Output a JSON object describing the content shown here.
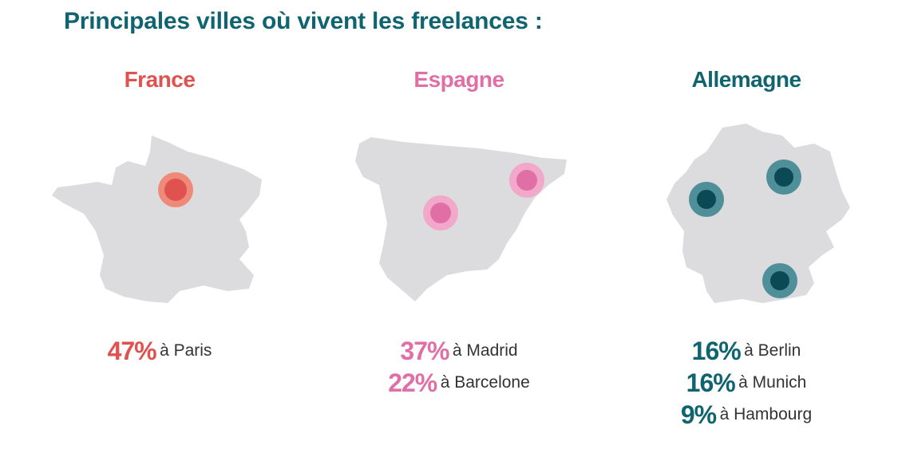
{
  "title": "Principales villes où vivent les freelances :",
  "colors": {
    "france": "#e0524f",
    "france_ring": "#ef8a78",
    "spain": "#e06fa6",
    "spain_ring": "#f2a8cb",
    "germany": "#0f6470",
    "germany_dot": "#0b4a55",
    "germany_ring": "#4f8f9a",
    "map_fill": "#dcdcde"
  },
  "countries": [
    {
      "name": "France",
      "stats": [
        {
          "pct": "47%",
          "city": "à Paris"
        }
      ]
    },
    {
      "name": "Espagne",
      "stats": [
        {
          "pct": "37%",
          "city": "à Madrid"
        },
        {
          "pct": "22%",
          "city": "à Barcelone"
        }
      ]
    },
    {
      "name": "Allemagne",
      "stats": [
        {
          "pct": "16%",
          "city": "à Berlin"
        },
        {
          "pct": "16%",
          "city": "à Munich"
        },
        {
          "pct": "9%",
          "city": "à Hambourg"
        }
      ]
    }
  ]
}
